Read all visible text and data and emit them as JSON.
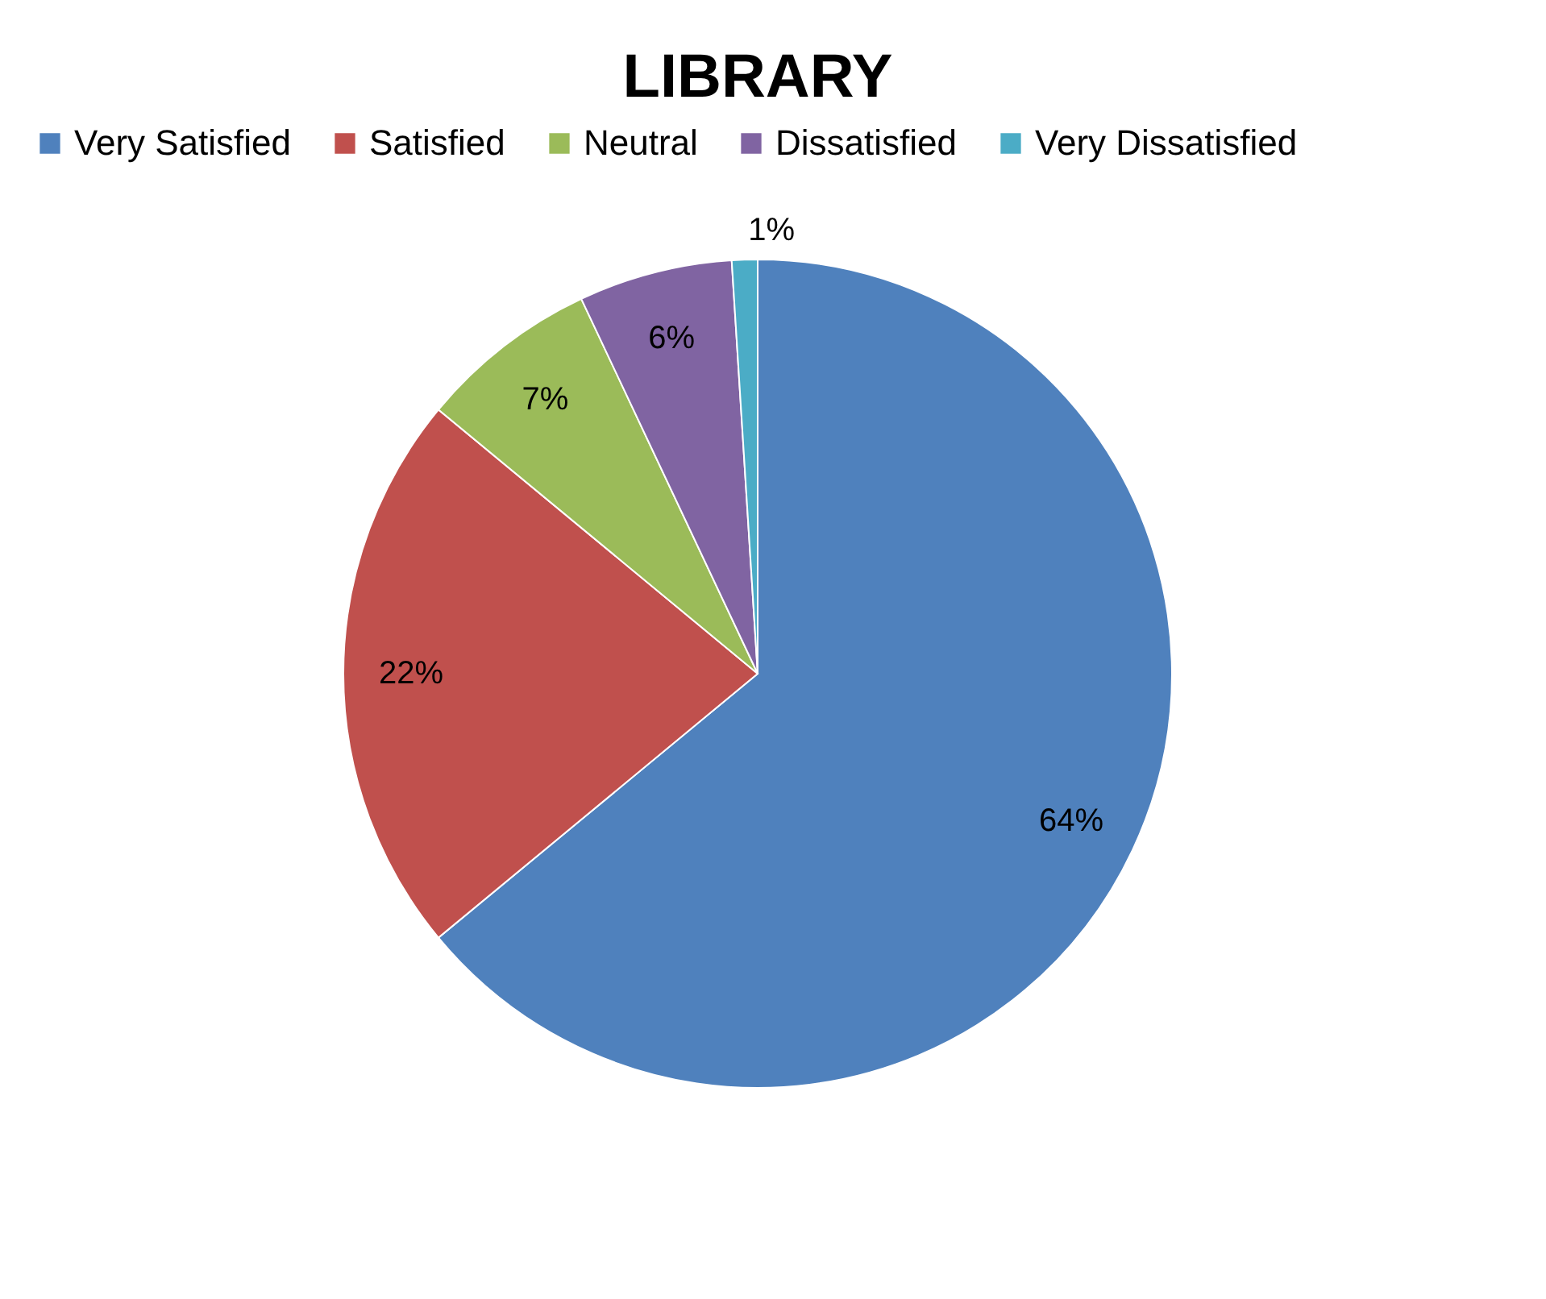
{
  "chart_data": {
    "type": "pie",
    "title": "LIBRARY",
    "categories": [
      "Very Satisfied",
      "Satisfied",
      "Neutral",
      "Dissatisfied",
      "Very Dissatisfied"
    ],
    "values": [
      64,
      22,
      7,
      6,
      1
    ],
    "colors": [
      "#4f81bd",
      "#c0504d",
      "#9bbb59",
      "#8064a2",
      "#4bacc6"
    ],
    "value_labels": [
      "64%",
      "22%",
      "7%",
      "6%",
      "1%"
    ],
    "legend": "top"
  }
}
